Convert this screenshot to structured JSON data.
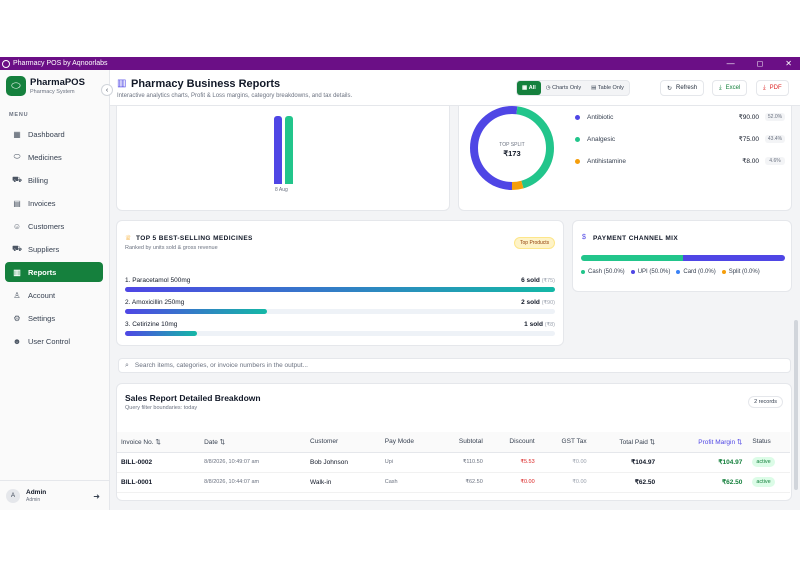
{
  "window": {
    "title": "Pharmacy POS by Aqnoorlabs",
    "minimize": "—",
    "maximize": "◻",
    "close": "✕"
  },
  "brand": {
    "name": "PharmaPOS",
    "subtitle": "Pharmacy System"
  },
  "sidebar": {
    "menu_label": "MENU",
    "items": [
      {
        "label": "Dashboard",
        "icon": "grid-icon"
      },
      {
        "label": "Medicines",
        "icon": "pill-icon"
      },
      {
        "label": "Billing",
        "icon": "cart-icon"
      },
      {
        "label": "Invoices",
        "icon": "document-icon"
      },
      {
        "label": "Customers",
        "icon": "users-icon"
      },
      {
        "label": "Suppliers",
        "icon": "truck-icon"
      },
      {
        "label": "Reports",
        "icon": "bar-chart-icon",
        "active": true
      },
      {
        "label": "Account",
        "icon": "user-icon"
      },
      {
        "label": "Settings",
        "icon": "gear-icon"
      },
      {
        "label": "User Control",
        "icon": "user-control-icon"
      }
    ]
  },
  "user": {
    "initial": "A",
    "name": "Admin",
    "role": "Admin"
  },
  "header": {
    "title": "Pharmacy Business Reports",
    "subtitle": "Interactive analytics charts, Profit & Loss margins, category breakdowns, and tax details.",
    "view_all": "All",
    "view_charts": "Charts Only",
    "view_table": "Table Only",
    "refresh": "Refresh",
    "excel": "Excel",
    "pdf": "PDF"
  },
  "colors": {
    "accent": "#15803d",
    "indigo": "#4f46e5",
    "teal": "#14b8a6",
    "amber": "#f59e0b",
    "blue": "#3b82f6"
  },
  "trend_chart": {
    "x_label": "8 Aug",
    "bars": [
      {
        "color": "#4f46e5",
        "level": 0.72
      },
      {
        "color": "#22c58b",
        "level": 0.72
      }
    ]
  },
  "category_split": {
    "center_label": "TOP SPLIT",
    "center_value": "₹173",
    "items": [
      {
        "name": "Antibiotic",
        "value": "₹90.00",
        "percent": "52.0%",
        "color": "#4f46e5"
      },
      {
        "name": "Analgesic",
        "value": "₹75.00",
        "percent": "43.4%",
        "color": "#22c58b"
      },
      {
        "name": "Antihistamine",
        "value": "₹8.00",
        "percent": "4.6%",
        "color": "#f59e0b"
      }
    ]
  },
  "best_sellers": {
    "title": "TOP 5 BEST-SELLING MEDICINES",
    "subtitle": "Ranked by units sold & gross revenue",
    "badge": "Top Products",
    "items": [
      {
        "name": "1. Paracetamol 500mg",
        "qty": "6 sold",
        "revenue": "(₹75)",
        "fraction": 1.0
      },
      {
        "name": "2. Amoxicillin 250mg",
        "qty": "2 sold",
        "revenue": "(₹90)",
        "fraction": 0.33
      },
      {
        "name": "3. Cetirizine 10mg",
        "qty": "1 sold",
        "revenue": "(₹8)",
        "fraction": 0.167
      }
    ]
  },
  "payment_mix": {
    "title": "PAYMENT CHANNEL MIX",
    "segments": [
      {
        "label": "Cash (50.0%)",
        "share": 0.5,
        "color": "#22c58b"
      },
      {
        "label": "UPI (50.0%)",
        "share": 0.5,
        "color": "#4f46e5"
      },
      {
        "label": "Card (0.0%)",
        "share": 0.0,
        "color": "#3b82f6"
      },
      {
        "label": "Split (0.0%)",
        "share": 0.0,
        "color": "#f59e0b"
      }
    ]
  },
  "search": {
    "placeholder": "Search items, categories, or invoice numbers in the output..."
  },
  "sales_table": {
    "title": "Sales Report Detailed Breakdown",
    "subtitle": "Query filter boundaries: today",
    "record_count": "2 records",
    "columns": [
      "Invoice No. ⇅",
      "Date ⇅",
      "Customer",
      "Pay Mode",
      "Subtotal",
      "Discount",
      "GST Tax",
      "Total Paid ⇅",
      "Profit Margin ⇅",
      "Status"
    ],
    "rows": [
      {
        "invoice": "BILL-0002",
        "date": "8/8/2026, 10:49:07 am",
        "customer": "Bob Johnson",
        "pay_mode": "Upi",
        "subtotal": "₹110.50",
        "discount": "₹5.53",
        "gst": "₹0.00",
        "total": "₹104.97",
        "margin": "₹104.97",
        "status": "active"
      },
      {
        "invoice": "BILL-0001",
        "date": "8/8/2026, 10:44:07 am",
        "customer": "Walk-in",
        "pay_mode": "Cash",
        "subtotal": "₹62.50",
        "discount": "₹0.00",
        "gst": "₹0.00",
        "total": "₹62.50",
        "margin": "₹62.50",
        "status": "active"
      }
    ]
  }
}
